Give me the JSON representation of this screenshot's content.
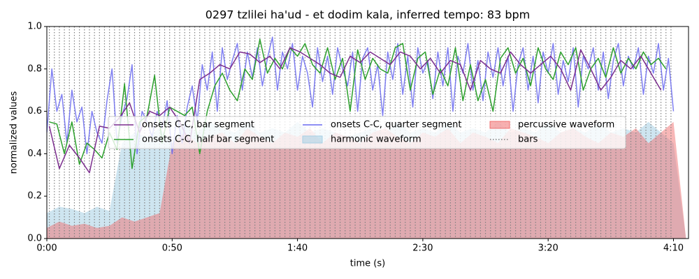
{
  "chart_data": {
    "type": "line",
    "title": "0297 tzlilei ha'ud - et dodim kala, inferred tempo: 83 bpm",
    "x_label": "time (s)",
    "y_label": "normalized values",
    "xlim": [
      0,
      256
    ],
    "ylim": [
      0,
      1
    ],
    "xticks": [
      {
        "value": 0,
        "label": "0:00"
      },
      {
        "value": 50,
        "label": "0:50"
      },
      {
        "value": 100,
        "label": "1:40"
      },
      {
        "value": 150,
        "label": "2:30"
      },
      {
        "value": 200,
        "label": "3:20"
      },
      {
        "value": 250,
        "label": "4:10"
      }
    ],
    "yticks": [
      {
        "value": 0,
        "label": "0.0"
      },
      {
        "value": 0.2,
        "label": "0.2"
      },
      {
        "value": 0.4,
        "label": "0.4"
      },
      {
        "value": 0.6,
        "label": "0.6"
      },
      {
        "value": 0.8,
        "label": "0.8"
      },
      {
        "value": 1,
        "label": "1.0"
      }
    ],
    "legend": "center",
    "series": [
      {
        "name": "onsets C-C, bar segment",
        "kind": "line",
        "color": "#7b2d8e",
        "x": [
          1,
          5,
          9,
          13,
          17,
          21,
          25,
          29,
          33,
          37,
          41,
          45,
          49,
          53,
          57,
          61,
          65,
          69,
          73,
          77,
          81,
          85,
          89,
          93,
          97,
          101,
          105,
          109,
          113,
          117,
          121,
          125,
          129,
          133,
          137,
          141,
          145,
          149,
          153,
          157,
          161,
          165,
          169,
          173,
          177,
          181,
          185,
          189,
          193,
          197,
          201,
          205,
          209,
          213,
          217,
          221,
          225,
          229,
          233,
          237,
          241,
          245
        ],
        "values": [
          0.53,
          0.33,
          0.44,
          0.38,
          0.31,
          0.53,
          0.52,
          0.57,
          0.64,
          0.5,
          0.6,
          0.58,
          0.62,
          0.55,
          0.45,
          0.75,
          0.78,
          0.82,
          0.8,
          0.88,
          0.87,
          0.83,
          0.86,
          0.8,
          0.9,
          0.88,
          0.85,
          0.82,
          0.78,
          0.76,
          0.86,
          0.83,
          0.88,
          0.85,
          0.82,
          0.88,
          0.86,
          0.8,
          0.85,
          0.78,
          0.84,
          0.82,
          0.7,
          0.84,
          0.8,
          0.78,
          0.88,
          0.82,
          0.78,
          0.82,
          0.86,
          0.8,
          0.7,
          0.89,
          0.8,
          0.7,
          0.76,
          0.84,
          0.8,
          0.86,
          0.78,
          0.7
        ]
      },
      {
        "name": "onsets C-C, half bar segment",
        "kind": "line",
        "color": "#2ca02c",
        "x": [
          1,
          4,
          7,
          10,
          13,
          16,
          19,
          22,
          25,
          28,
          31,
          34,
          37,
          40,
          43,
          46,
          49,
          52,
          55,
          58,
          61,
          64,
          67,
          70,
          73,
          76,
          79,
          82,
          85,
          88,
          91,
          94,
          97,
          100,
          103,
          106,
          109,
          112,
          115,
          118,
          121,
          124,
          127,
          130,
          133,
          136,
          139,
          142,
          145,
          148,
          151,
          154,
          157,
          160,
          163,
          166,
          169,
          172,
          175,
          178,
          181,
          184,
          187,
          190,
          193,
          196,
          199,
          202,
          205,
          208,
          211,
          214,
          217,
          220,
          223,
          226,
          229,
          232,
          235,
          238,
          241,
          244,
          247
        ],
        "values": [
          0.55,
          0.54,
          0.4,
          0.55,
          0.35,
          0.45,
          0.42,
          0.38,
          0.5,
          0.42,
          0.73,
          0.33,
          0.55,
          0.58,
          0.77,
          0.45,
          0.62,
          0.6,
          0.58,
          0.62,
          0.4,
          0.6,
          0.72,
          0.78,
          0.7,
          0.65,
          0.8,
          0.75,
          0.94,
          0.78,
          0.85,
          0.8,
          0.9,
          0.86,
          0.92,
          0.82,
          0.78,
          0.9,
          0.75,
          0.85,
          0.6,
          0.89,
          0.75,
          0.85,
          0.8,
          0.78,
          0.9,
          0.92,
          0.7,
          0.85,
          0.88,
          0.68,
          0.8,
          0.72,
          0.9,
          0.65,
          0.82,
          0.65,
          0.75,
          0.6,
          0.85,
          0.9,
          0.78,
          0.85,
          0.72,
          0.9,
          0.8,
          0.75,
          0.88,
          0.82,
          0.9,
          0.7,
          0.8,
          0.85,
          0.76,
          0.9,
          0.78,
          0.85,
          0.8,
          0.88,
          0.82,
          0.85,
          0.8
        ]
      },
      {
        "name": "onsets C-C, quarter segment",
        "kind": "line",
        "color": "#6a6af0",
        "x": [
          0,
          2,
          4,
          6,
          8,
          10,
          12,
          14,
          16,
          18,
          20,
          22,
          24,
          26,
          28,
          30,
          32,
          34,
          36,
          38,
          40,
          42,
          44,
          46,
          48,
          50,
          52,
          54,
          56,
          58,
          60,
          62,
          64,
          66,
          68,
          70,
          72,
          74,
          76,
          78,
          80,
          82,
          84,
          86,
          88,
          90,
          92,
          94,
          96,
          98,
          100,
          102,
          104,
          106,
          108,
          110,
          112,
          114,
          116,
          118,
          120,
          122,
          124,
          126,
          128,
          130,
          132,
          134,
          136,
          138,
          140,
          142,
          144,
          146,
          148,
          150,
          152,
          154,
          156,
          158,
          160,
          162,
          164,
          166,
          168,
          170,
          172,
          174,
          176,
          178,
          180,
          182,
          184,
          186,
          188,
          190,
          192,
          194,
          196,
          198,
          200,
          202,
          204,
          206,
          208,
          210,
          212,
          214,
          216,
          218,
          220,
          222,
          224,
          226,
          228,
          230,
          232,
          234,
          236,
          238,
          240,
          242,
          244,
          246,
          248,
          250
        ],
        "values": [
          0.5,
          0.8,
          0.6,
          0.68,
          0.45,
          0.7,
          0.55,
          0.62,
          0.4,
          0.6,
          0.5,
          0.45,
          0.65,
          0.8,
          0.45,
          0.58,
          0.66,
          0.82,
          0.4,
          0.6,
          0.55,
          0.48,
          0.6,
          0.52,
          0.65,
          0.4,
          0.58,
          0.45,
          0.62,
          0.72,
          0.55,
          0.82,
          0.7,
          0.88,
          0.6,
          0.9,
          0.75,
          0.84,
          0.92,
          0.7,
          0.88,
          0.76,
          0.9,
          0.72,
          0.85,
          0.95,
          0.7,
          0.88,
          0.8,
          0.92,
          0.7,
          0.86,
          0.78,
          0.62,
          0.9,
          0.74,
          0.86,
          0.68,
          0.9,
          0.8,
          0.72,
          0.88,
          0.6,
          0.85,
          0.9,
          0.7,
          0.82,
          0.58,
          0.88,
          0.75,
          0.92,
          0.68,
          0.86,
          0.62,
          0.9,
          0.78,
          0.84,
          0.66,
          0.88,
          0.72,
          0.9,
          0.6,
          0.86,
          0.78,
          0.92,
          0.7,
          0.84,
          0.65,
          0.88,
          0.76,
          0.9,
          0.72,
          0.86,
          0.6,
          0.82,
          0.9,
          0.7,
          0.86,
          0.64,
          0.88,
          0.78,
          0.92,
          0.68,
          0.84,
          0.74,
          0.9,
          0.62,
          0.86,
          0.8,
          0.9,
          0.7,
          0.88,
          0.66,
          0.84,
          0.92,
          0.72,
          0.86,
          0.8,
          0.9,
          0.68,
          0.86,
          0.78,
          0.92,
          0.7,
          0.85,
          0.6
        ]
      },
      {
        "name": "harmonic waveform",
        "kind": "area",
        "color": "#a6cfe3",
        "x": [
          0,
          5,
          10,
          15,
          20,
          25,
          30,
          35,
          40,
          45,
          50,
          55,
          60,
          65,
          70,
          75,
          80,
          85,
          90,
          95,
          100,
          105,
          110,
          115,
          120,
          125,
          130,
          135,
          140,
          145,
          150,
          155,
          160,
          165,
          170,
          175,
          180,
          185,
          190,
          195,
          200,
          205,
          210,
          215,
          220,
          225,
          230,
          235,
          240,
          245,
          250,
          255
        ],
        "values": [
          0.12,
          0.15,
          0.14,
          0.12,
          0.15,
          0.13,
          0.45,
          0.5,
          0.48,
          0.52,
          0.45,
          0.55,
          0.5,
          0.55,
          0.52,
          0.5,
          0.55,
          0.5,
          0.52,
          0.5,
          0.55,
          0.5,
          0.52,
          0.5,
          0.48,
          0.5,
          0.52,
          0.5,
          0.55,
          0.5,
          0.52,
          0.5,
          0.55,
          0.5,
          0.52,
          0.5,
          0.55,
          0.5,
          0.52,
          0.5,
          0.55,
          0.5,
          0.52,
          0.5,
          0.55,
          0.5,
          0.52,
          0.5,
          0.55,
          0.5,
          0.45,
          0
        ]
      },
      {
        "name": "percussive waveform",
        "kind": "area",
        "color": "#f07070",
        "x": [
          0,
          5,
          10,
          15,
          20,
          25,
          30,
          35,
          40,
          45,
          50,
          55,
          60,
          65,
          70,
          75,
          80,
          85,
          90,
          95,
          100,
          105,
          110,
          115,
          120,
          125,
          130,
          135,
          140,
          145,
          150,
          155,
          160,
          165,
          170,
          175,
          180,
          185,
          190,
          195,
          200,
          205,
          210,
          215,
          220,
          225,
          230,
          235,
          240,
          245,
          250,
          255
        ],
        "values": [
          0.05,
          0.08,
          0.06,
          0.07,
          0.05,
          0.06,
          0.1,
          0.08,
          0.1,
          0.12,
          0.45,
          0.5,
          0.45,
          0.48,
          0.5,
          0.45,
          0.52,
          0.48,
          0.45,
          0.5,
          0.48,
          0.52,
          0.45,
          0.5,
          0.48,
          0.45,
          0.5,
          0.52,
          0.48,
          0.45,
          0.5,
          0.48,
          0.52,
          0.45,
          0.5,
          0.48,
          0.45,
          0.52,
          0.5,
          0.48,
          0.45,
          0.5,
          0.52,
          0.48,
          0.45,
          0.5,
          0.48,
          0.52,
          0.45,
          0.5,
          0.55,
          0
        ]
      },
      {
        "name": "bars",
        "kind": "vlines",
        "color": "#808080",
        "x": [
          1,
          3,
          5,
          7,
          9,
          11,
          13,
          15,
          17,
          19,
          21,
          23,
          25,
          27,
          29,
          31,
          33,
          35,
          37,
          39,
          41,
          43,
          45,
          47,
          49,
          51,
          53,
          55,
          57,
          59,
          61,
          63,
          65,
          67,
          69,
          71,
          73,
          75,
          77,
          79,
          81,
          83,
          85,
          87,
          89,
          91,
          93,
          95,
          97,
          99,
          101,
          103,
          105,
          107,
          109,
          111,
          113,
          115,
          117,
          119,
          121,
          123,
          125,
          127,
          129,
          131,
          133,
          135,
          137,
          139,
          141,
          143,
          145,
          147,
          149,
          151,
          153,
          155,
          157,
          159,
          161,
          163,
          165,
          167,
          169,
          171,
          173,
          175,
          177,
          179,
          181,
          183,
          185,
          187,
          189,
          191,
          193,
          195,
          197,
          199,
          201,
          203,
          205,
          207,
          209,
          211,
          213,
          215,
          217,
          219,
          221,
          223,
          225,
          227,
          229,
          231,
          233,
          235,
          237,
          239,
          241,
          243,
          245,
          247,
          249
        ]
      }
    ]
  }
}
